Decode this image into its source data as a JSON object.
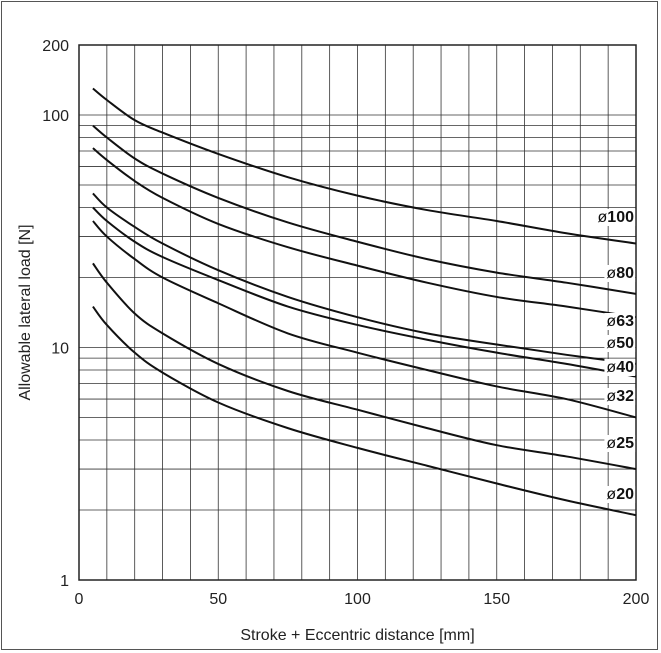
{
  "chart_data": {
    "type": "line",
    "xlabel": "Stroke + Eccentric distance [mm]",
    "ylabel": "Allowable lateral load [N]",
    "xlim": [
      0,
      200
    ],
    "ylim": [
      1,
      200
    ],
    "yscale": "log",
    "grid": true,
    "x_ticks": [
      "0",
      "50",
      "100",
      "150",
      "200"
    ],
    "y_ticks": [
      "1",
      "10",
      "100",
      "200"
    ],
    "x": [
      5,
      10,
      20,
      30,
      50,
      75,
      100,
      125,
      150,
      175,
      200
    ],
    "series": [
      {
        "name": "ø100",
        "values": [
          130,
          116,
          95,
          84,
          68,
          54,
          45,
          39,
          35,
          31,
          28
        ]
      },
      {
        "name": "ø80",
        "values": [
          90,
          80,
          65,
          56,
          44,
          34.5,
          28.5,
          24,
          21,
          19,
          17
        ]
      },
      {
        "name": "ø63",
        "values": [
          72,
          64,
          52,
          44,
          34,
          27,
          22.5,
          19,
          16.5,
          15,
          13.5
        ]
      },
      {
        "name": "ø50",
        "values": [
          46,
          40,
          33,
          28,
          21.5,
          16.5,
          13.5,
          11.5,
          10.3,
          9.3,
          8.5
        ]
      },
      {
        "name": "ø40",
        "values": [
          40,
          35,
          28.5,
          24.5,
          19.5,
          15,
          12.5,
          10.8,
          9.5,
          8.5,
          7.5
        ]
      },
      {
        "name": "ø32",
        "values": [
          35,
          30,
          24,
          20,
          15.5,
          11.5,
          9.5,
          8,
          6.8,
          6,
          5
        ]
      },
      {
        "name": "ø25",
        "values": [
          23,
          19,
          14,
          11.5,
          8.5,
          6.5,
          5.4,
          4.5,
          3.8,
          3.4,
          3
        ]
      },
      {
        "name": "ø20",
        "values": [
          15,
          12.5,
          9.5,
          7.8,
          5.8,
          4.5,
          3.7,
          3.1,
          2.6,
          2.2,
          1.9
        ]
      }
    ],
    "series_labels": [
      {
        "prefix": "ø",
        "num": "100"
      },
      {
        "prefix": "ø",
        "num": "80"
      },
      {
        "prefix": "ø",
        "num": "63"
      },
      {
        "prefix": "ø",
        "num": "50"
      },
      {
        "prefix": "ø",
        "num": "40"
      },
      {
        "prefix": "ø",
        "num": "32"
      },
      {
        "prefix": "ø",
        "num": "25"
      },
      {
        "prefix": "ø",
        "num": "20"
      }
    ],
    "colors": {
      "line": "#111111",
      "grid": "#333333",
      "background": "#ffffff"
    }
  }
}
